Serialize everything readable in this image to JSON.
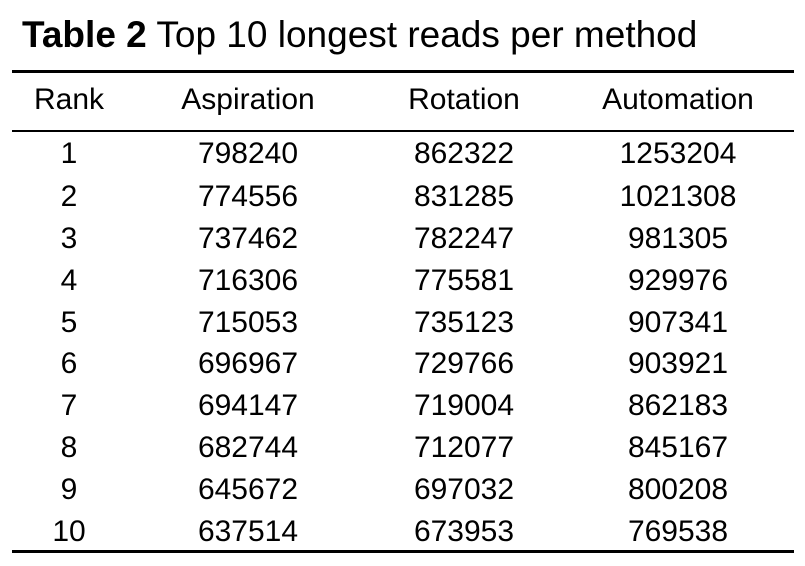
{
  "caption": {
    "label": "Table 2",
    "text": "Top 10 longest reads per method"
  },
  "table": {
    "headers": [
      "Rank",
      "Aspiration",
      "Rotation",
      "Automation"
    ],
    "rows": [
      [
        "1",
        "798240",
        "862322",
        "1253204"
      ],
      [
        "2",
        "774556",
        "831285",
        "1021308"
      ],
      [
        "3",
        "737462",
        "782247",
        "981305"
      ],
      [
        "4",
        "716306",
        "775581",
        "929976"
      ],
      [
        "5",
        "715053",
        "735123",
        "907341"
      ],
      [
        "6",
        "696967",
        "729766",
        "903921"
      ],
      [
        "7",
        "694147",
        "719004",
        "862183"
      ],
      [
        "8",
        "682744",
        "712077",
        "845167"
      ],
      [
        "9",
        "645672",
        "697032",
        "800208"
      ],
      [
        "10",
        "637514",
        "673953",
        "769538"
      ]
    ]
  }
}
